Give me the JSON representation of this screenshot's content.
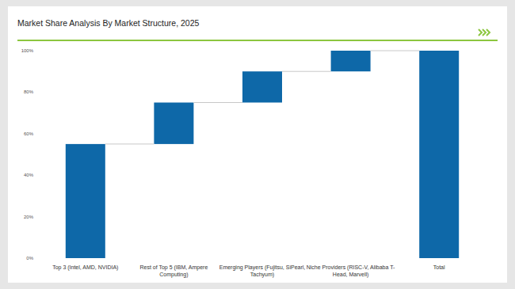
{
  "chart_data": {
    "type": "waterfall",
    "title": "Market Share Analysis By Market Structure, 2025",
    "categories": [
      "Top 3 (Intel, AMD, NVIDIA)",
      "Rest of Top 5 (IBM, Ampere Computing)",
      "Emerging Players (Fujitsu, SiPearl, Tachyum)",
      "Niche Providers (RISC-V, Alibaba T-Head, Marvell)",
      "Total"
    ],
    "values": [
      55,
      20,
      15,
      10,
      100
    ],
    "color": "#0e68a8",
    "ylim": [
      0,
      100
    ],
    "yticks": [
      {
        "value": 0,
        "label": "0%"
      },
      {
        "value": 20,
        "label": "20%"
      },
      {
        "value": 40,
        "label": "40%"
      },
      {
        "value": 60,
        "label": "60%"
      },
      {
        "value": 80,
        "label": "80%"
      },
      {
        "value": 100,
        "label": "100%"
      }
    ],
    "grid": false
  }
}
